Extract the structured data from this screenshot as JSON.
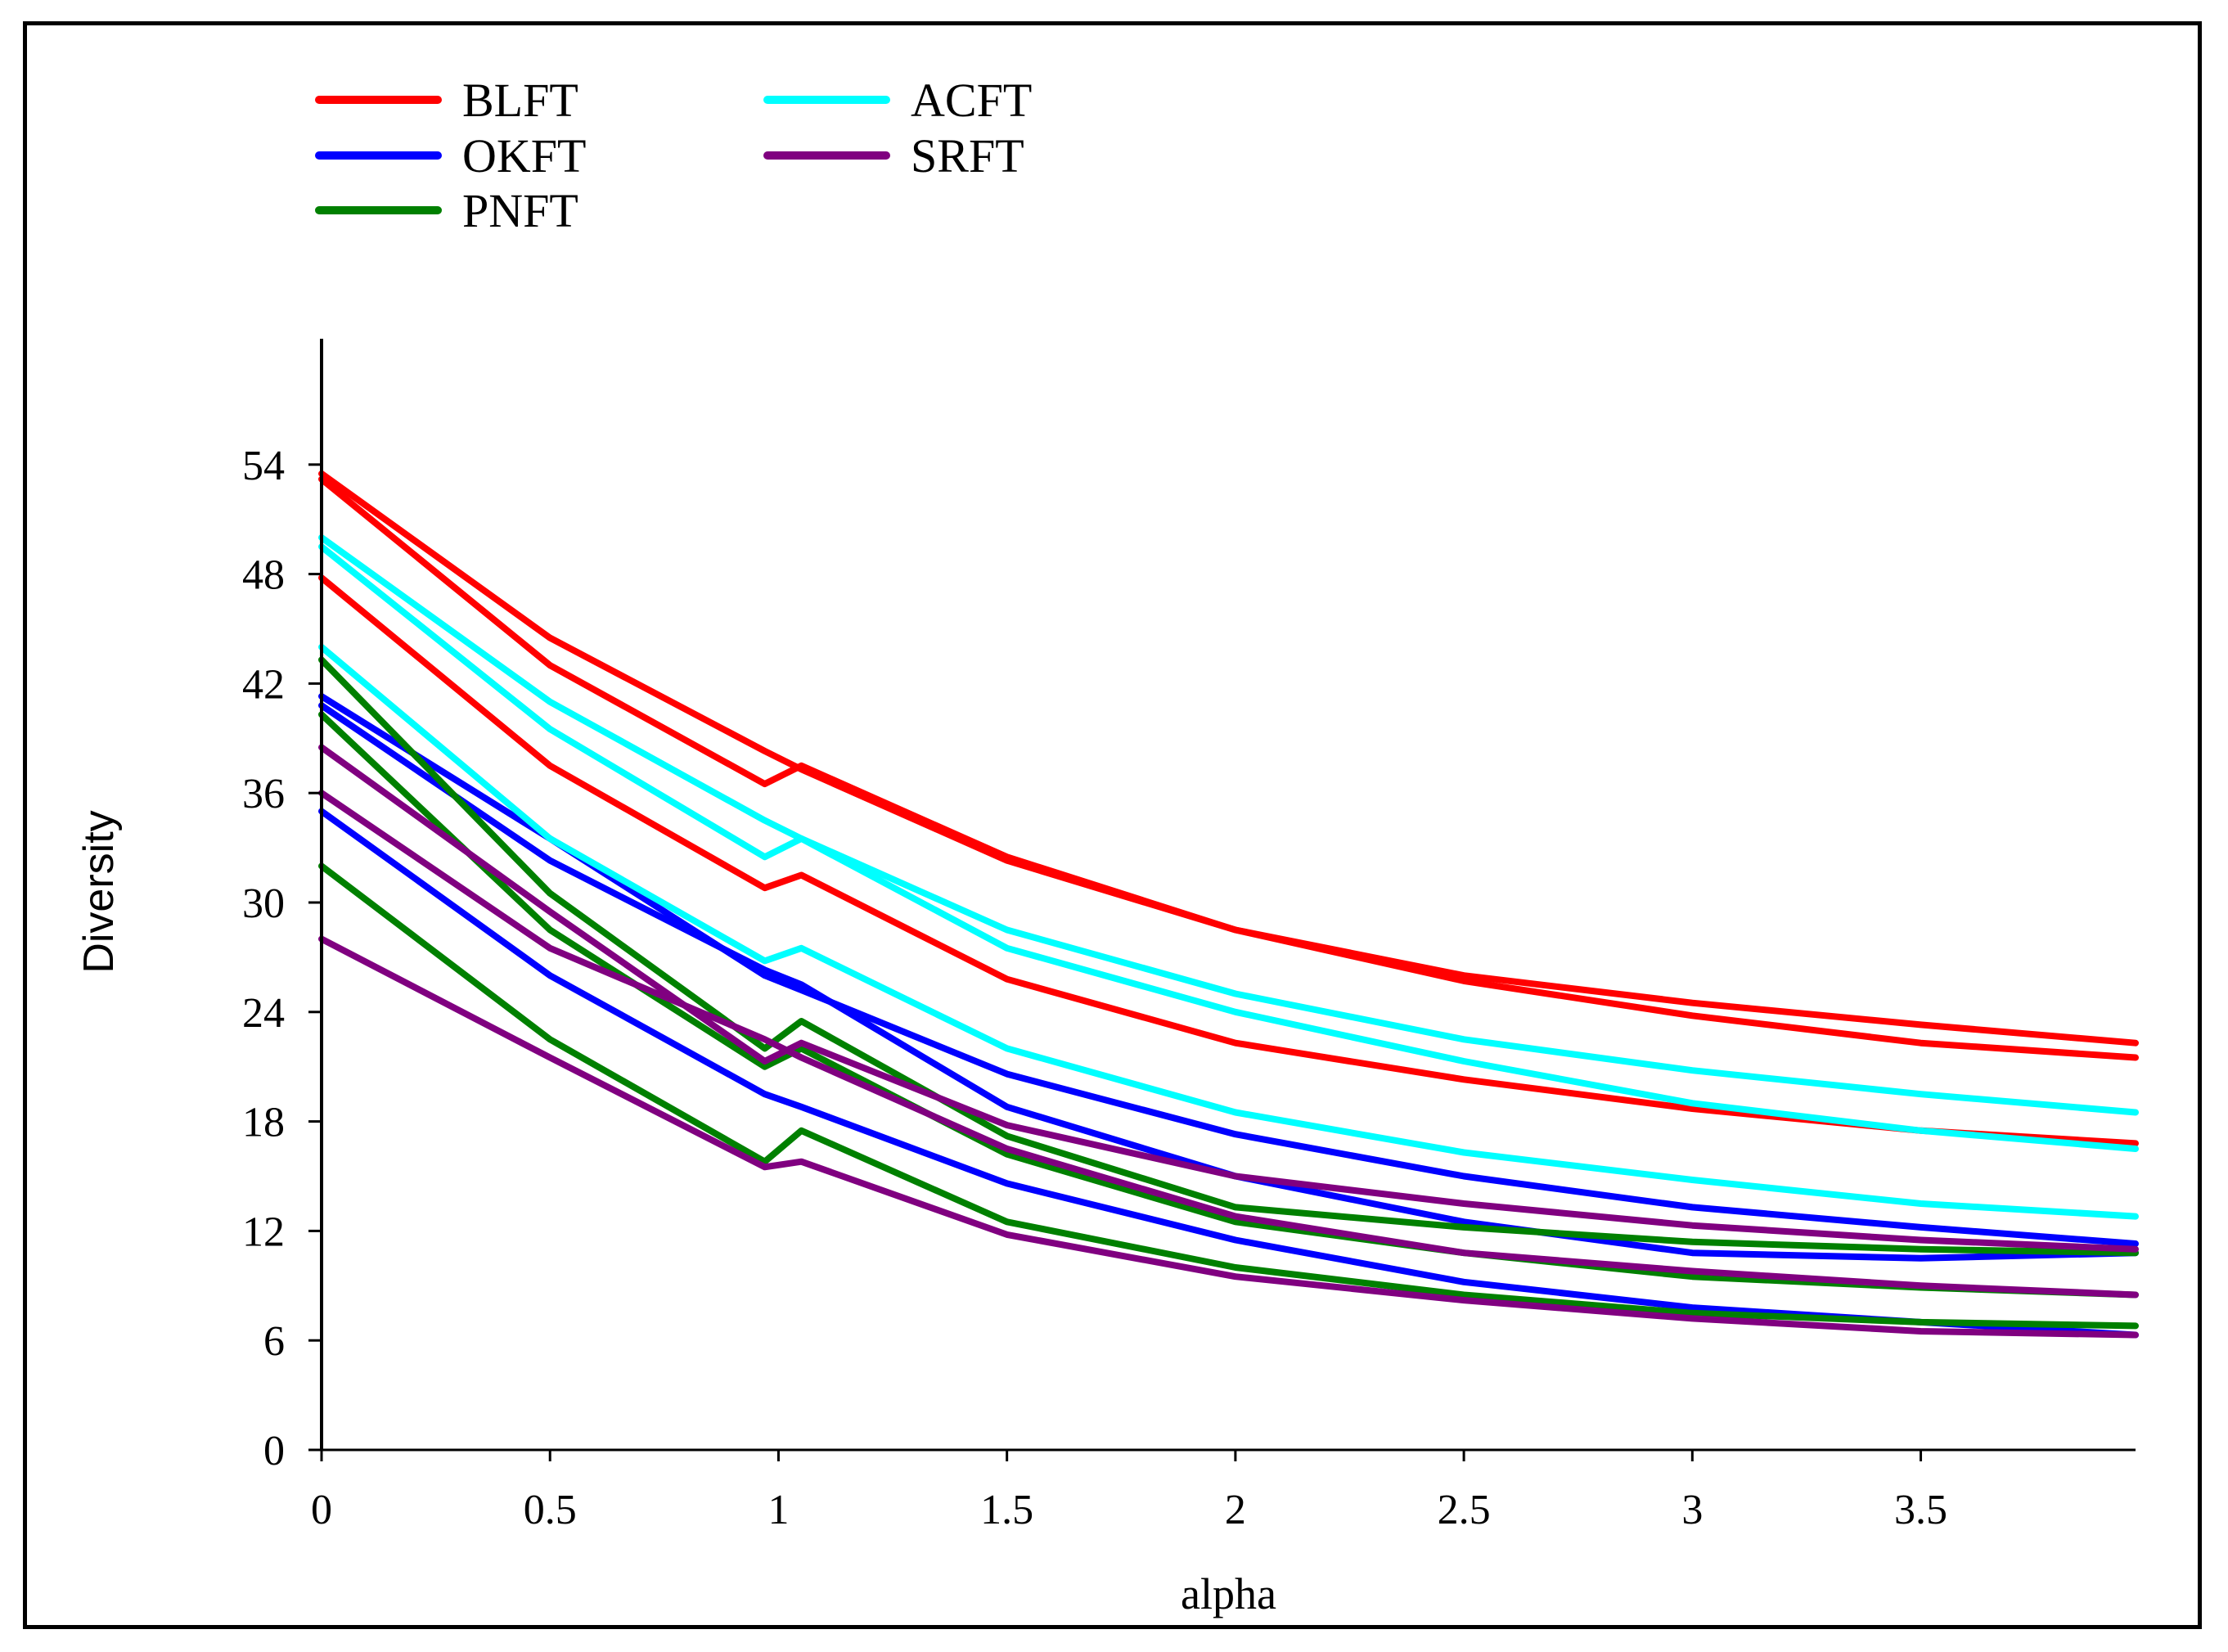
{
  "chart_data": {
    "type": "line",
    "title": "",
    "xlabel": "alpha",
    "ylabel": "Diversity",
    "xlim": [
      0,
      3.97
    ],
    "ylim": [
      0,
      60
    ],
    "x_ticks": [
      0,
      0.5,
      1,
      1.5,
      2,
      2.5,
      3,
      3.5
    ],
    "x_tick_labels": [
      "0",
      "0.5",
      "1",
      "1.5",
      "2",
      "2.5",
      "3",
      "3.5"
    ],
    "y_ticks": [
      0,
      6,
      12,
      18,
      24,
      30,
      36,
      42,
      48,
      54
    ],
    "y_tick_labels": [
      "0",
      "6",
      "12",
      "18",
      "24",
      "30",
      "36",
      "42",
      "48",
      "54"
    ],
    "grid": false,
    "legend_position": "top-left",
    "legend": [
      {
        "name": "BLFT",
        "color": "#ff0000"
      },
      {
        "name": "OKFT",
        "color": "#0000ff"
      },
      {
        "name": "PNFT",
        "color": "#008000"
      },
      {
        "name": "ACFT",
        "color": "#00ffff"
      },
      {
        "name": "SRFT",
        "color": "#800080"
      }
    ],
    "x": [
      0,
      0.5,
      0.97,
      1.05,
      1.5,
      2,
      2.5,
      3,
      3.5,
      3.97
    ],
    "series": [
      {
        "name": "BLFT",
        "color": "#ff0000",
        "values": [
          53.5,
          44.5,
          38.3,
          37.3,
          32.3,
          28.5,
          26.0,
          24.5,
          23.3,
          22.3
        ]
      },
      {
        "name": "BLFT",
        "color": "#ff0000",
        "values": [
          53.2,
          43.0,
          36.5,
          37.5,
          32.5,
          28.5,
          25.7,
          23.8,
          22.3,
          21.5
        ]
      },
      {
        "name": "BLFT",
        "color": "#ff0000",
        "values": [
          47.8,
          37.5,
          30.8,
          31.5,
          25.8,
          22.3,
          20.3,
          18.7,
          17.5,
          16.8
        ]
      },
      {
        "name": "OKFT",
        "color": "#0000ff",
        "values": [
          41.3,
          33.5,
          26.0,
          25.2,
          20.6,
          17.3,
          15.0,
          13.3,
          12.2,
          11.3
        ]
      },
      {
        "name": "OKFT",
        "color": "#0000ff",
        "values": [
          40.8,
          32.3,
          26.3,
          25.5,
          18.8,
          15.0,
          12.5,
          10.8,
          10.5,
          10.8
        ]
      },
      {
        "name": "OKFT",
        "color": "#0000ff",
        "values": [
          35.0,
          26.0,
          19.5,
          18.8,
          14.6,
          11.5,
          9.2,
          7.8,
          7.0,
          6.3
        ]
      },
      {
        "name": "PNFT",
        "color": "#008000",
        "values": [
          43.3,
          30.5,
          22.0,
          23.5,
          17.2,
          13.3,
          12.2,
          11.4,
          11.0,
          10.8
        ]
      },
      {
        "name": "PNFT",
        "color": "#008000",
        "values": [
          40.3,
          28.5,
          21.0,
          22.0,
          16.2,
          12.5,
          10.8,
          9.5,
          8.9,
          8.5
        ]
      },
      {
        "name": "PNFT",
        "color": "#008000",
        "values": [
          32.0,
          22.5,
          15.8,
          17.5,
          12.5,
          10.0,
          8.5,
          7.5,
          7.0,
          6.8
        ]
      },
      {
        "name": "ACFT",
        "color": "#00ffff",
        "values": [
          50.0,
          41.0,
          34.5,
          33.5,
          28.5,
          25.0,
          22.5,
          20.8,
          19.5,
          18.5
        ]
      },
      {
        "name": "ACFT",
        "color": "#00ffff",
        "values": [
          49.5,
          39.5,
          32.5,
          33.5,
          27.5,
          24.0,
          21.3,
          19.0,
          17.5,
          16.5
        ]
      },
      {
        "name": "ACFT",
        "color": "#00ffff",
        "values": [
          44.0,
          33.5,
          26.8,
          27.5,
          22.0,
          18.5,
          16.3,
          14.8,
          13.5,
          12.8
        ]
      },
      {
        "name": "SRFT",
        "color": "#800080",
        "values": [
          38.5,
          29.5,
          21.3,
          22.3,
          17.8,
          15.0,
          13.5,
          12.3,
          11.5,
          11.0
        ]
      },
      {
        "name": "SRFT",
        "color": "#800080",
        "values": [
          36.0,
          27.5,
          22.5,
          21.5,
          16.5,
          12.8,
          10.8,
          9.8,
          9.0,
          8.5
        ]
      },
      {
        "name": "SRFT",
        "color": "#800080",
        "values": [
          28.0,
          21.5,
          15.5,
          15.8,
          11.8,
          9.5,
          8.2,
          7.2,
          6.5,
          6.3
        ]
      }
    ]
  }
}
